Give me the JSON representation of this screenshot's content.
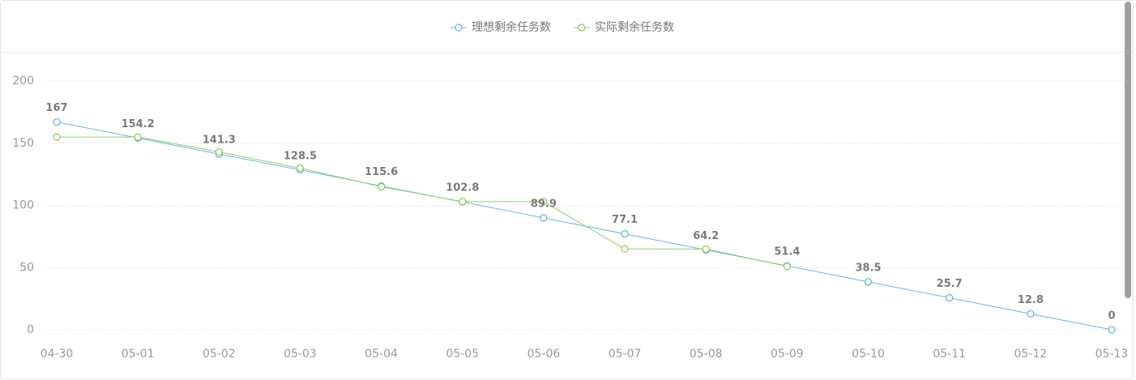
{
  "chart_data": {
    "type": "line",
    "categories": [
      "04-30",
      "05-01",
      "05-02",
      "05-03",
      "05-04",
      "05-05",
      "05-06",
      "05-07",
      "05-08",
      "05-09",
      "05-10",
      "05-11",
      "05-12",
      "05-13"
    ],
    "series": [
      {
        "name": "理想剩余任务数",
        "color": "#66b7e6",
        "values": [
          167,
          154.2,
          141.3,
          128.5,
          115.6,
          102.8,
          89.9,
          77.1,
          64.2,
          51.4,
          38.5,
          25.7,
          12.8,
          0
        ],
        "show_labels": true
      },
      {
        "name": "实际剩余任务数",
        "color": "#8fcf63",
        "values": [
          155,
          155,
          143,
          130,
          115,
          103,
          103,
          65,
          65,
          51,
          null,
          null,
          null,
          null
        ],
        "show_labels": false
      }
    ],
    "ylim": [
      0,
      200
    ],
    "yticks": [
      0,
      50,
      100,
      150,
      200
    ],
    "grid": true,
    "legend": "top"
  }
}
